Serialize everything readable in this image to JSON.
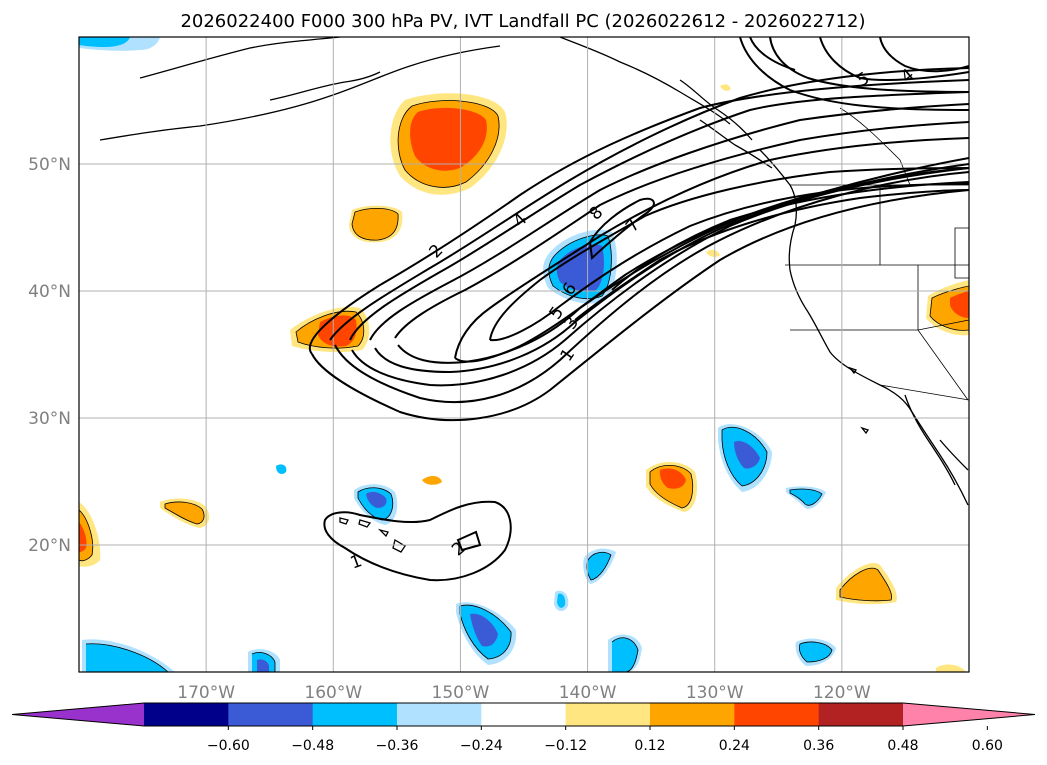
{
  "title": "2026022400 F000 300 hPa PV, IVT Landfall PC (2026022612 - 2026022712)",
  "lon_ticks": [
    {
      "lon": -170,
      "label": "170°W"
    },
    {
      "lon": -160,
      "label": "160°W"
    },
    {
      "lon": -150,
      "label": "150°W"
    },
    {
      "lon": -140,
      "label": "140°W"
    },
    {
      "lon": -130,
      "label": "130°W"
    },
    {
      "lon": -120,
      "label": "120°W"
    }
  ],
  "lat_ticks": [
    {
      "lat": 50,
      "label": "50°N"
    },
    {
      "lat": 40,
      "label": "40°N"
    },
    {
      "lat": 30,
      "label": "30°N"
    },
    {
      "lat": 20,
      "label": "20°N"
    }
  ],
  "contour_labels": [
    "1",
    "2",
    "3",
    "4",
    "5",
    "6",
    "7",
    "8",
    "1",
    "2",
    "4",
    "5"
  ],
  "colorbar": {
    "levels": [
      "-0.60",
      "-0.48",
      "-0.36",
      "-0.24",
      "-0.12",
      "0.12",
      "0.24",
      "0.36",
      "0.48",
      "0.60"
    ],
    "colors": [
      "#9932cc",
      "#00008b",
      "#3b5bd6",
      "#00bfff",
      "#b0e2ff",
      "#ffffff",
      "#ffe680",
      "#ffa500",
      "#ff4500",
      "#b22222",
      "#ff82ab"
    ]
  },
  "shading_colors": {
    "pos1": "#ffe680",
    "pos2": "#ffa500",
    "pos3": "#ff4500",
    "neg1": "#b0e2ff",
    "neg2": "#00bfff",
    "neg3": "#3b5bd6"
  }
}
